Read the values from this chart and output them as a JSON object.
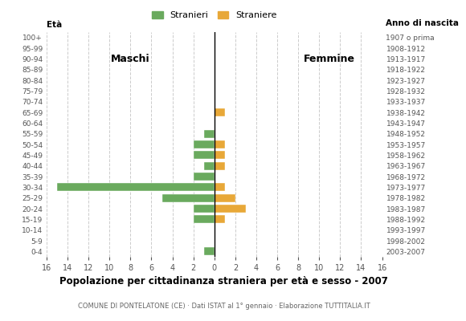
{
  "age_groups": [
    "0-4",
    "5-9",
    "10-14",
    "15-19",
    "20-24",
    "25-29",
    "30-34",
    "35-39",
    "40-44",
    "45-49",
    "50-54",
    "55-59",
    "60-64",
    "65-69",
    "70-74",
    "75-79",
    "80-84",
    "85-89",
    "90-94",
    "95-99",
    "100+"
  ],
  "birth_years": [
    "2003-2007",
    "1998-2002",
    "1993-1997",
    "1988-1992",
    "1983-1987",
    "1978-1982",
    "1973-1977",
    "1968-1972",
    "1963-1967",
    "1958-1962",
    "1953-1957",
    "1948-1952",
    "1943-1947",
    "1938-1942",
    "1933-1937",
    "1928-1932",
    "1923-1927",
    "1918-1922",
    "1913-1917",
    "1908-1912",
    "1907 o prima"
  ],
  "males_stranieri": [
    1,
    0,
    0,
    2,
    2,
    5,
    15,
    2,
    1,
    2,
    2,
    1,
    0,
    0,
    0,
    0,
    0,
    0,
    0,
    0,
    0
  ],
  "females_straniere": [
    0,
    0,
    0,
    1,
    3,
    2,
    1,
    0,
    1,
    1,
    1,
    0,
    0,
    1,
    0,
    0,
    0,
    0,
    0,
    0,
    0
  ],
  "color_males": "#6aaa5e",
  "color_females": "#e8a838",
  "xlim": 16,
  "title": "Popolazione per cittadinanza straniera per età e sesso - 2007",
  "subtitle": "COMUNE DI PONTELATONE (CE) · Dati ISTAT al 1° gennaio · Elaborazione TUTTITALIA.IT",
  "legend_label_males": "Stranieri",
  "legend_label_females": "Straniere",
  "label_eta": "Età",
  "label_anno": "Anno di nascita",
  "label_maschi": "Maschi",
  "label_femmine": "Femmine",
  "grid_color": "#cccccc",
  "background_color": "#ffffff"
}
